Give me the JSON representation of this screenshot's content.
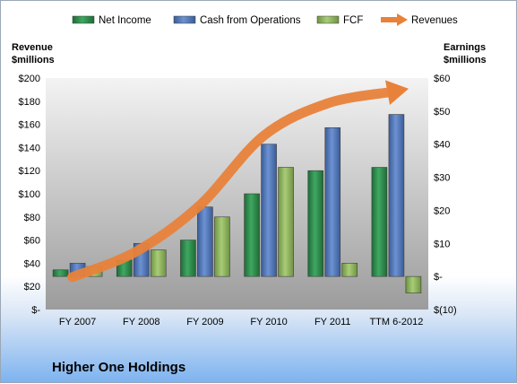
{
  "chart_data": {
    "type": "bar",
    "title": "Higher One Holdings",
    "categories": [
      "FY 2007",
      "FY 2008",
      "FY 2009",
      "FY 2010",
      "FY 2011",
      "TTM 6-2012"
    ],
    "left_axis": {
      "label_line1": "Revenue",
      "label_line2": "$millions",
      "range": [
        0,
        200
      ],
      "ticks": [
        0,
        20,
        40,
        60,
        80,
        100,
        120,
        140,
        160,
        180,
        200
      ],
      "tick_labels": [
        "$-",
        "$20",
        "$40",
        "$60",
        "$80",
        "$100",
        "$120",
        "$140",
        "$160",
        "$180",
        "$200"
      ]
    },
    "right_axis": {
      "label_line1": "Earnings",
      "label_line2": "$millions",
      "range": [
        -10,
        60
      ],
      "ticks": [
        -10,
        0,
        10,
        20,
        30,
        40,
        50,
        60
      ],
      "tick_labels": [
        "$(10)",
        "$-",
        "$10",
        "$20",
        "$30",
        "$40",
        "$50",
        "$60"
      ]
    },
    "series": [
      {
        "name": "Net Income",
        "axis": "right",
        "color": "#2f8a4e",
        "values": [
          2,
          5,
          11,
          25,
          32,
          33
        ]
      },
      {
        "name": "Cash from Operations",
        "axis": "right",
        "color": "#5277b8",
        "values": [
          4,
          10,
          21,
          40,
          45,
          49
        ]
      },
      {
        "name": "FCF",
        "axis": "right",
        "color": "#8db55c",
        "values": [
          3,
          8,
          18,
          33,
          4,
          -5
        ]
      },
      {
        "name": "Revenues",
        "axis": "left",
        "type": "line",
        "color": "#e8823a",
        "values": [
          28,
          50,
          90,
          150,
          178,
          188
        ]
      }
    ],
    "legend_position": "top",
    "grid": false
  }
}
